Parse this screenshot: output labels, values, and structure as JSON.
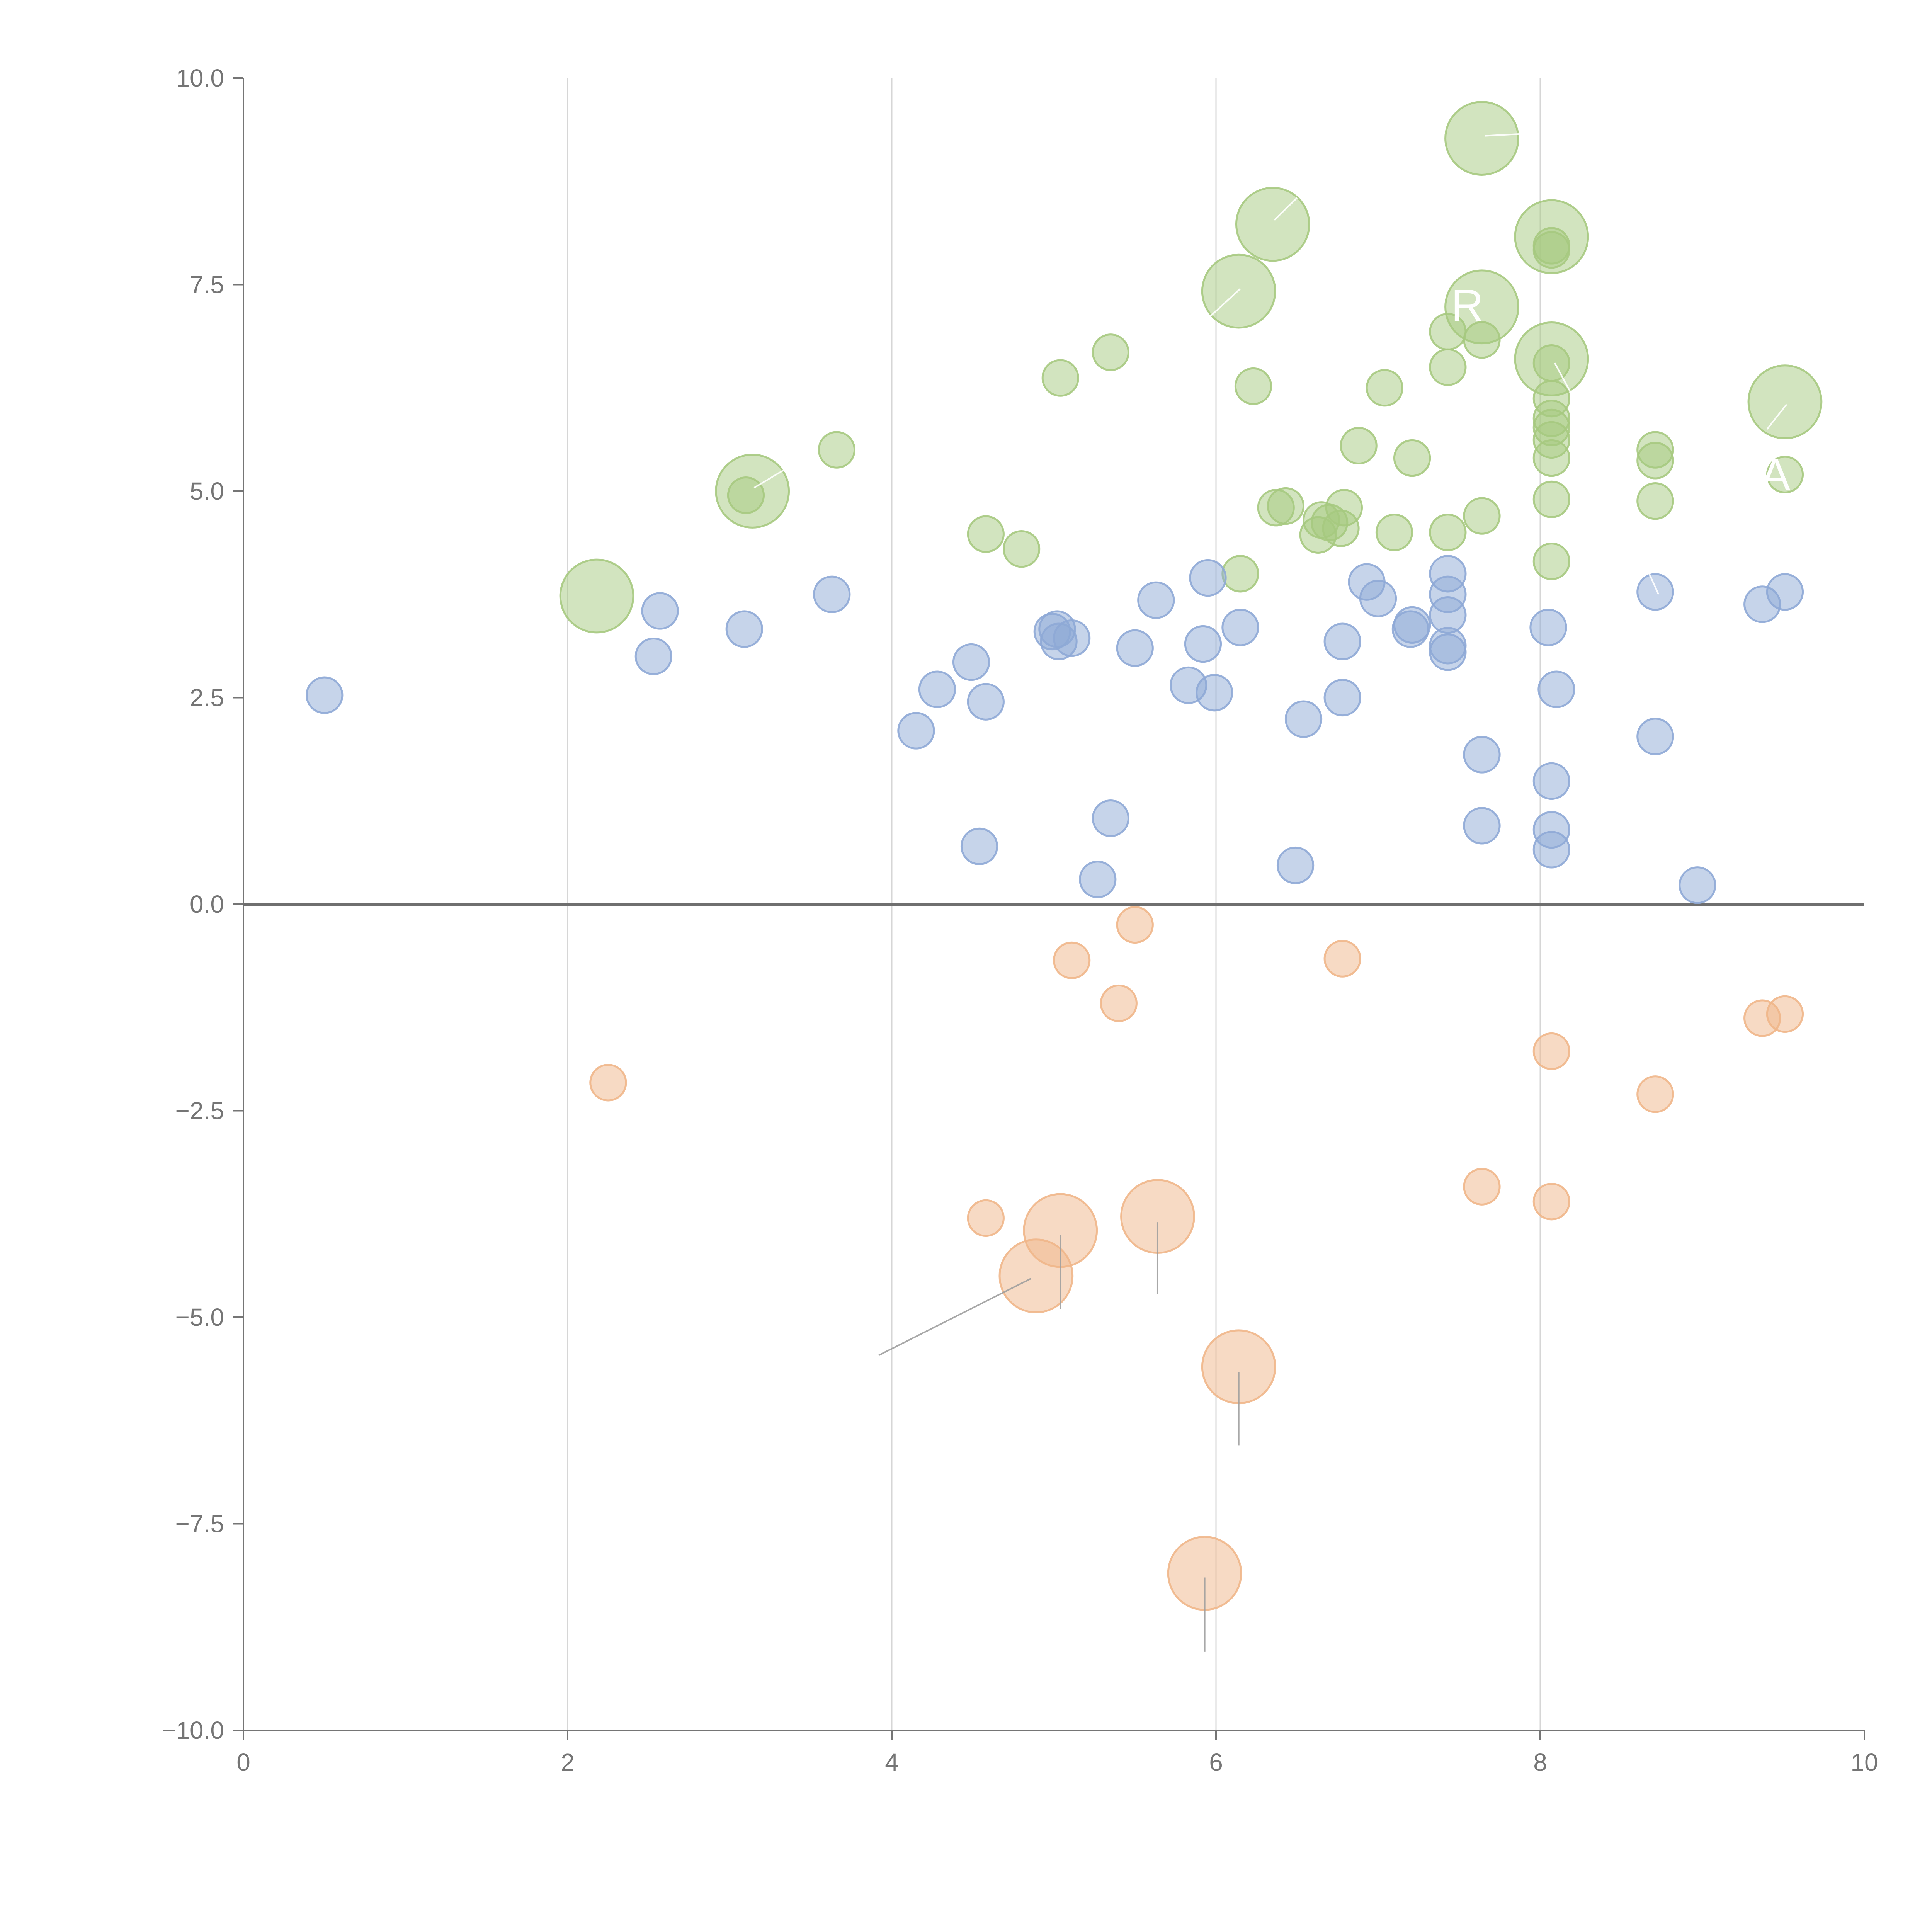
{
  "chart_data": {
    "type": "scatter",
    "title": "",
    "xlabel": "",
    "ylabel": "",
    "xlim": [
      0,
      10
    ],
    "ylim": [
      -10,
      10
    ],
    "x_ticks": [
      0,
      2,
      4,
      6,
      8,
      10
    ],
    "y_ticks": [
      -10,
      -7.5,
      -5,
      -2.5,
      0,
      2.5,
      5,
      7.5,
      10
    ],
    "x_tick_labels": [
      "0",
      "2",
      "4",
      "6",
      "8",
      "10"
    ],
    "y_tick_labels": [
      "−10.0",
      "−7.5",
      "−5.0",
      "−2.5",
      "0.0",
      "2.5",
      "5.0",
      "7.5",
      "10.0"
    ],
    "grid": {
      "vertical": true,
      "horizontal": false
    },
    "zero_line": true,
    "series": [
      {
        "name": "upper-green",
        "color": "#a6c97f",
        "points": [
          [
            2.18,
            3.73,
            0.45
          ],
          [
            3.14,
            5.0,
            0.45
          ],
          [
            3.1,
            4.95,
            0.22
          ],
          [
            3.66,
            5.5,
            0.22
          ],
          [
            4.58,
            4.48,
            0.22
          ],
          [
            4.8,
            4.3,
            0.22
          ],
          [
            5.04,
            6.37,
            0.22
          ],
          [
            5.35,
            6.68,
            0.22
          ],
          [
            6.14,
            7.42,
            0.45
          ],
          [
            6.35,
            8.23,
            0.45
          ],
          [
            6.15,
            4.0,
            0.22
          ],
          [
            6.23,
            6.27,
            0.22
          ],
          [
            6.37,
            4.8,
            0.22
          ],
          [
            6.43,
            4.82,
            0.22
          ],
          [
            6.63,
            4.47,
            0.22
          ],
          [
            6.65,
            4.65,
            0.22
          ],
          [
            6.7,
            4.62,
            0.22
          ],
          [
            6.77,
            4.55,
            0.22
          ],
          [
            6.79,
            4.8,
            0.22
          ],
          [
            6.88,
            5.55,
            0.22
          ],
          [
            7.04,
            6.25,
            0.22
          ],
          [
            7.1,
            4.5,
            0.22
          ],
          [
            7.21,
            5.4,
            0.22
          ],
          [
            7.43,
            6.93,
            0.22
          ],
          [
            7.43,
            6.5,
            0.22
          ],
          [
            7.43,
            4.5,
            0.22
          ],
          [
            7.64,
            9.27,
            0.45
          ],
          [
            7.64,
            7.23,
            0.45
          ],
          [
            7.64,
            6.83,
            0.22
          ],
          [
            7.64,
            4.7,
            0.22
          ],
          [
            8.07,
            8.08,
            0.45
          ],
          [
            8.07,
            7.97,
            0.22
          ],
          [
            8.07,
            7.92,
            0.22
          ],
          [
            8.07,
            6.6,
            0.45
          ],
          [
            8.07,
            6.55,
            0.22
          ],
          [
            8.07,
            6.12,
            0.22
          ],
          [
            8.07,
            5.88,
            0.22
          ],
          [
            8.07,
            5.77,
            0.22
          ],
          [
            8.07,
            5.62,
            0.22
          ],
          [
            8.07,
            5.4,
            0.22
          ],
          [
            8.07,
            4.9,
            0.22
          ],
          [
            8.07,
            4.15,
            0.22
          ],
          [
            8.71,
            5.5,
            0.22
          ],
          [
            8.71,
            5.37,
            0.22
          ],
          [
            8.71,
            4.88,
            0.22
          ],
          [
            9.51,
            6.08,
            0.45
          ],
          [
            9.51,
            5.2,
            0.22
          ]
        ]
      },
      {
        "name": "middle-blue",
        "color": "#8ea9d6",
        "points": [
          [
            0.5,
            2.53,
            0.22
          ],
          [
            2.53,
            3.0,
            0.22
          ],
          [
            2.57,
            3.55,
            0.22
          ],
          [
            3.09,
            3.33,
            0.22
          ],
          [
            3.63,
            3.75,
            0.22
          ],
          [
            4.15,
            2.1,
            0.22
          ],
          [
            4.28,
            2.6,
            0.22
          ],
          [
            4.49,
            2.93,
            0.22
          ],
          [
            4.54,
            0.7,
            0.22
          ],
          [
            4.58,
            2.45,
            0.22
          ],
          [
            4.99,
            3.3,
            0.22
          ],
          [
            5.02,
            3.33,
            0.22
          ],
          [
            5.03,
            3.18,
            0.22
          ],
          [
            5.11,
            3.22,
            0.22
          ],
          [
            5.27,
            0.3,
            0.22
          ],
          [
            5.35,
            1.04,
            0.22
          ],
          [
            5.5,
            3.1,
            0.22
          ],
          [
            5.63,
            3.68,
            0.22
          ],
          [
            5.83,
            2.65,
            0.22
          ],
          [
            5.92,
            3.15,
            0.22
          ],
          [
            5.95,
            3.95,
            0.22
          ],
          [
            5.99,
            2.56,
            0.22
          ],
          [
            6.15,
            3.35,
            0.22
          ],
          [
            6.49,
            0.47,
            0.22
          ],
          [
            6.54,
            2.24,
            0.22
          ],
          [
            6.78,
            3.18,
            0.22
          ],
          [
            6.78,
            2.5,
            0.22
          ],
          [
            6.93,
            3.9,
            0.22
          ],
          [
            7.0,
            3.7,
            0.22
          ],
          [
            7.2,
            3.33,
            0.22
          ],
          [
            7.21,
            3.38,
            0.22
          ],
          [
            7.43,
            4.0,
            0.22
          ],
          [
            7.43,
            3.75,
            0.22
          ],
          [
            7.43,
            3.5,
            0.22
          ],
          [
            7.43,
            3.13,
            0.22
          ],
          [
            7.43,
            3.05,
            0.22
          ],
          [
            7.64,
            1.81,
            0.22
          ],
          [
            7.64,
            0.95,
            0.22
          ],
          [
            8.05,
            3.35,
            0.22
          ],
          [
            8.07,
            1.49,
            0.22
          ],
          [
            8.07,
            0.9,
            0.22
          ],
          [
            8.07,
            0.66,
            0.22
          ],
          [
            8.1,
            2.6,
            0.22
          ],
          [
            8.71,
            3.78,
            0.22
          ],
          [
            8.71,
            2.03,
            0.22
          ],
          [
            8.97,
            0.23,
            0.22
          ],
          [
            9.37,
            3.63,
            0.22
          ],
          [
            9.51,
            3.78,
            0.22
          ]
        ]
      },
      {
        "name": "lower-orange",
        "color": "#f0b68a",
        "points": [
          [
            2.25,
            -2.16,
            0.22
          ],
          [
            4.58,
            -3.8,
            0.22
          ],
          [
            4.89,
            -4.5,
            0.45
          ],
          [
            5.04,
            -3.95,
            0.45
          ],
          [
            5.11,
            -0.68,
            0.22
          ],
          [
            5.4,
            -1.2,
            0.22
          ],
          [
            5.5,
            -0.25,
            0.22
          ],
          [
            5.64,
            -3.78,
            0.45
          ],
          [
            5.93,
            -8.1,
            0.45
          ],
          [
            6.14,
            -5.6,
            0.45
          ],
          [
            6.78,
            -0.66,
            0.22
          ],
          [
            7.64,
            -3.42,
            0.22
          ],
          [
            8.07,
            -1.78,
            0.22
          ],
          [
            8.07,
            -3.6,
            0.22
          ],
          [
            8.71,
            -2.3,
            0.22
          ],
          [
            9.37,
            -1.38,
            0.22
          ],
          [
            9.51,
            -1.33,
            0.22
          ]
        ]
      }
    ],
    "leader_lines": [
      {
        "from": [
          3.15,
          5.04
        ],
        "to": [
          3.5,
          5.45
        ],
        "color": "#ffffff"
      },
      {
        "from": [
          6.36,
          8.28
        ],
        "to": [
          6.5,
          8.55
        ],
        "color": "#ffffff"
      },
      {
        "from": [
          6.15,
          7.45
        ],
        "to": [
          5.9,
          7.0
        ],
        "color": "#ffffff"
      },
      {
        "from": [
          7.66,
          9.3
        ],
        "to": [
          7.95,
          9.33
        ],
        "color": "#ffffff"
      },
      {
        "from": [
          8.09,
          6.55
        ],
        "to": [
          8.2,
          6.15
        ],
        "color": "#ffffff"
      },
      {
        "from": [
          9.52,
          6.05
        ],
        "to": [
          9.4,
          5.75
        ],
        "color": "#ffffff"
      },
      {
        "from": [
          8.73,
          3.75
        ],
        "to": [
          8.65,
          4.1
        ],
        "color": "#ffffff"
      },
      {
        "from": [
          4.86,
          -4.53
        ],
        "to": [
          3.92,
          -5.46
        ],
        "color": "#9e9e9e"
      },
      {
        "from": [
          5.04,
          -4.0
        ],
        "to": [
          5.04,
          -4.9
        ],
        "color": "#9e9e9e"
      },
      {
        "from": [
          5.64,
          -3.85
        ],
        "to": [
          5.64,
          -4.72
        ],
        "color": "#9e9e9e"
      },
      {
        "from": [
          6.14,
          -5.66
        ],
        "to": [
          6.14,
          -6.55
        ],
        "color": "#9e9e9e"
      },
      {
        "from": [
          5.93,
          -8.15
        ],
        "to": [
          5.93,
          -9.05
        ],
        "color": "#9e9e9e"
      }
    ],
    "highlight_labels": [
      {
        "text": "R",
        "at": [
          7.55,
          7.25
        ]
      },
      {
        "text": "A",
        "at": [
          9.45,
          5.2
        ]
      }
    ]
  }
}
